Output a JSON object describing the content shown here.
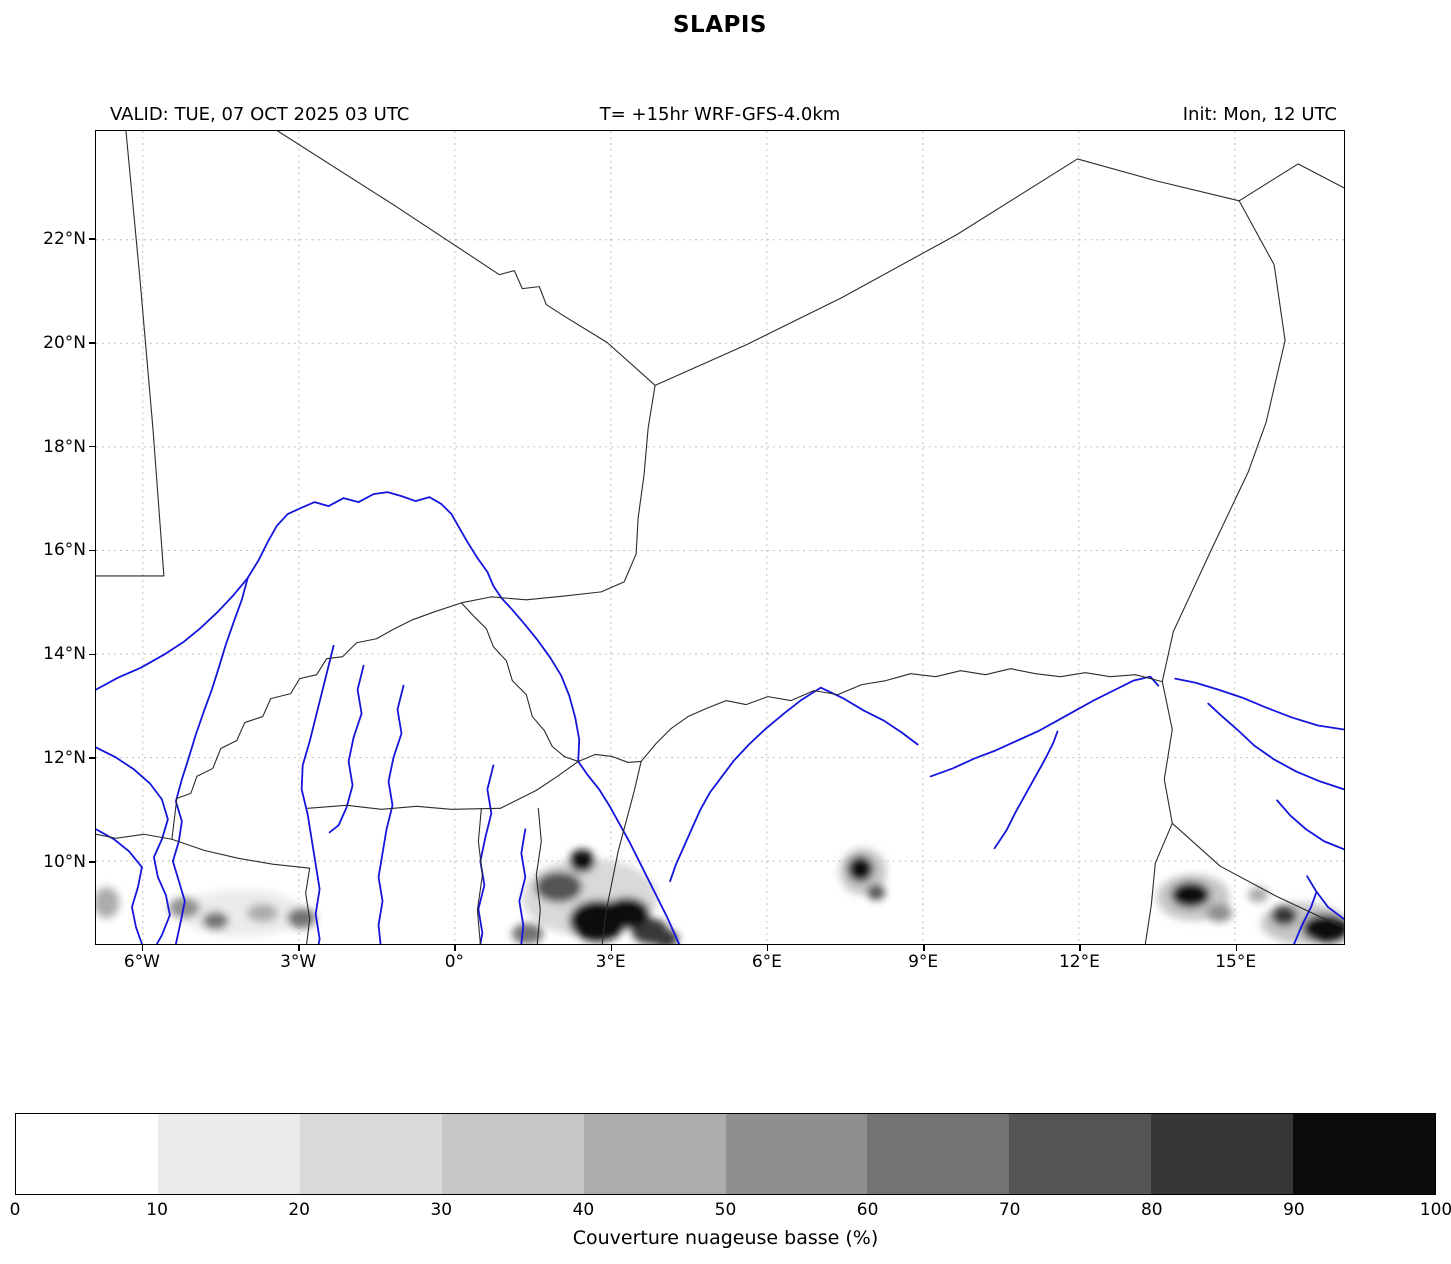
{
  "title": "SLAPIS",
  "header": {
    "valid": "VALID: TUE, 07 OCT 2025 03 UTC",
    "forecast": "T= +15hr WRF-GFS-4.0km",
    "init": "Init: Mon, 12 UTC"
  },
  "chart_data": {
    "type": "heatmap",
    "title": "SLAPIS",
    "variable": "Couverture nuageuse basse (%)",
    "model": "WRF-GFS-4.0km",
    "valid_time": "TUE, 07 OCT 2025 03 UTC",
    "init_time": "Mon, 12 UTC",
    "lead": "+15hr",
    "extent": {
      "lon_min": -6.9,
      "lon_max": 17.1,
      "lat_min": 8.4,
      "lat_max": 24.1
    },
    "grid": true,
    "lon_ticks": [
      {
        "deg": -6,
        "label": "6°W"
      },
      {
        "deg": -3,
        "label": "3°W"
      },
      {
        "deg": 0,
        "label": "0°"
      },
      {
        "deg": 3,
        "label": "3°E"
      },
      {
        "deg": 6,
        "label": "6°E"
      },
      {
        "deg": 9,
        "label": "9°E"
      },
      {
        "deg": 12,
        "label": "12°E"
      },
      {
        "deg": 15,
        "label": "15°E"
      }
    ],
    "lat_ticks": [
      {
        "deg": 22,
        "label": "22°N"
      },
      {
        "deg": 20,
        "label": "20°N"
      },
      {
        "deg": 18,
        "label": "18°N"
      },
      {
        "deg": 16,
        "label": "16°N"
      },
      {
        "deg": 14,
        "label": "14°N"
      },
      {
        "deg": 12,
        "label": "12°N"
      },
      {
        "deg": 10,
        "label": "10°N"
      }
    ],
    "colorbar": {
      "label": "Couverture nuageuse basse (%)",
      "orientation": "horizontal",
      "levels": [
        0,
        10,
        20,
        30,
        40,
        50,
        60,
        70,
        80,
        90,
        100
      ],
      "tick_labels": [
        "0",
        "10",
        "20",
        "30",
        "40",
        "50",
        "60",
        "70",
        "80",
        "90",
        "100"
      ],
      "colors": [
        "#ffffff",
        "#ebebeb",
        "#d9d9d9",
        "#c6c6c6",
        "#acacac",
        "#8f8f8f",
        "#737373",
        "#555555",
        "#373737",
        "#0c0c0c"
      ]
    },
    "cloud_patches": [
      {
        "lon": 2.6,
        "lat": 9.3,
        "w": 2.6,
        "h": 1.5,
        "pct": 25
      },
      {
        "lon": 2.0,
        "lat": 9.5,
        "w": 0.9,
        "h": 0.6,
        "pct": 75
      },
      {
        "lon": 2.45,
        "lat": 10.0,
        "w": 0.5,
        "h": 0.45,
        "pct": 90
      },
      {
        "lon": 2.75,
        "lat": 8.85,
        "w": 1.1,
        "h": 0.8,
        "pct": 95
      },
      {
        "lon": 3.3,
        "lat": 9.0,
        "w": 0.9,
        "h": 0.6,
        "pct": 95
      },
      {
        "lon": 3.75,
        "lat": 8.65,
        "w": 0.7,
        "h": 0.5,
        "pct": 85
      },
      {
        "lon": 1.4,
        "lat": 8.6,
        "w": 0.6,
        "h": 0.4,
        "pct": 60
      },
      {
        "lon": 4.05,
        "lat": 8.5,
        "w": 0.5,
        "h": 0.35,
        "pct": 80
      },
      {
        "lon": -4.1,
        "lat": 9.0,
        "w": 2.4,
        "h": 0.9,
        "pct": 15
      },
      {
        "lon": -5.2,
        "lat": 9.1,
        "w": 0.6,
        "h": 0.4,
        "pct": 55
      },
      {
        "lon": -4.6,
        "lat": 8.85,
        "w": 0.5,
        "h": 0.35,
        "pct": 60
      },
      {
        "lon": -3.7,
        "lat": 9.0,
        "w": 0.6,
        "h": 0.35,
        "pct": 40
      },
      {
        "lon": -2.95,
        "lat": 8.9,
        "w": 0.55,
        "h": 0.4,
        "pct": 60
      },
      {
        "lon": -6.7,
        "lat": 9.2,
        "w": 0.5,
        "h": 0.6,
        "pct": 45
      },
      {
        "lon": 7.85,
        "lat": 9.8,
        "w": 0.9,
        "h": 0.9,
        "pct": 30
      },
      {
        "lon": 7.8,
        "lat": 9.85,
        "w": 0.5,
        "h": 0.5,
        "pct": 95
      },
      {
        "lon": 8.1,
        "lat": 9.4,
        "w": 0.35,
        "h": 0.3,
        "pct": 70
      },
      {
        "lon": 14.2,
        "lat": 9.3,
        "w": 1.4,
        "h": 0.9,
        "pct": 30
      },
      {
        "lon": 14.15,
        "lat": 9.35,
        "w": 0.75,
        "h": 0.5,
        "pct": 90
      },
      {
        "lon": 14.7,
        "lat": 9.0,
        "w": 0.5,
        "h": 0.35,
        "pct": 50
      },
      {
        "lon": 16.3,
        "lat": 8.8,
        "w": 1.6,
        "h": 0.8,
        "pct": 30
      },
      {
        "lon": 15.95,
        "lat": 8.95,
        "w": 0.5,
        "h": 0.4,
        "pct": 80
      },
      {
        "lon": 16.75,
        "lat": 8.7,
        "w": 0.9,
        "h": 0.55,
        "pct": 95
      },
      {
        "lon": 15.45,
        "lat": 9.35,
        "w": 0.4,
        "h": 0.3,
        "pct": 45
      }
    ],
    "overlays": {
      "rivers_color": "#1414dc",
      "borders_color": "#2b2b2b",
      "grid_color": "#bdbdbd"
    },
    "legend_position": "bottom"
  }
}
